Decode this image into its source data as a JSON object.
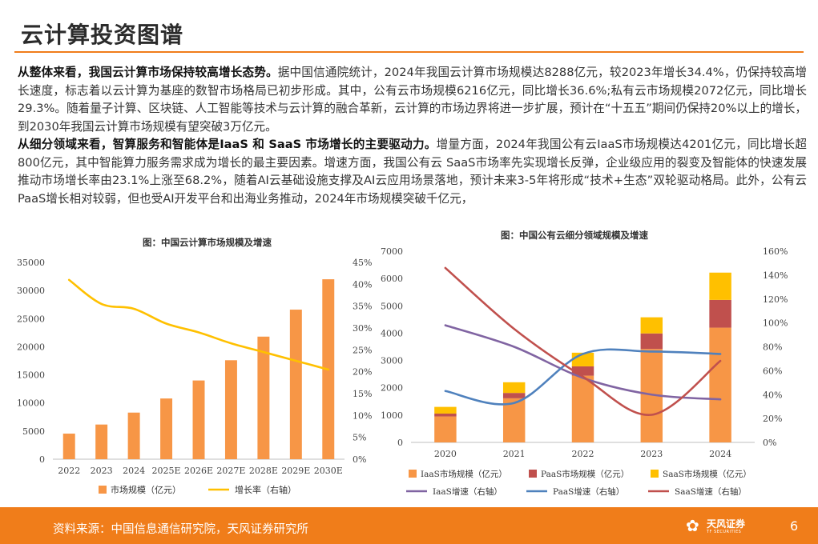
{
  "slide": {
    "title": "云计算投资图谱",
    "page_number": "6"
  },
  "body": {
    "p1_lead": "从整体来看，我国云计算市场保持较高增长态势。",
    "p1_text": "据中国信通院统计，2024年我国云计算市场规模达8288亿元，较2023年增长34.4%，仍保持较高增长速度，标志着以云计算为基座的数智市场格局已初步形成。其中，公有云市场规模6216亿元，同比增长36.6%;私有云市场规模2072亿元，同比增长 29.3%。随着量子计算、区块链、人工智能等技术与云计算的融合革新，云计算的市场边界将进一步扩展，预计在“十五五”期间仍保持20%以上的增长，到2030年我国云计算市场规模有望突破3万亿元。",
    "p2_lead": "从细分领域来看，智算服务和智能体是IaaS 和 SaaS 市场增长的主要驱动力。",
    "p2_text": "增量方面，2024年我国公有云IaaS市场规模达4201亿元，同比增长超800亿元，其中智能算力服务需求成为增长的最主要因素。增速方面，我国公有云 SaaS市场率先实现增长反弹，企业级应用的裂变及智能体的快速发展推动市场增长率由23.1%上涨至68.2%，随着AI云基础设施支撑及AI云应用场景落地，预计未来3-5年将形成“技术+生态”双轮驱动格局。此外，公有云PaaS增长相对较弱，但也受AI开发平台和出海业务推动，2024年市场规模突破千亿元，"
  },
  "footer": {
    "source": "资料来源：中国信息通信研究院，天风证券研究所",
    "logo_text": "天风证券",
    "logo_sub": "TF SECURITIES",
    "logo_glyph": "✿",
    "bar_color": "#f07d1a"
  },
  "chart_data": [
    {
      "type": "bar",
      "title": "图：中国云计算市场规模及增速",
      "categories": [
        "2022",
        "2023",
        "2024",
        "2025E",
        "2026E",
        "2027E",
        "2028E",
        "2029E",
        "2030E"
      ],
      "left_ticks": [
        "0",
        "5000",
        "10000",
        "15000",
        "20000",
        "25000",
        "30000",
        "35000"
      ],
      "right_ticks": [
        "0%",
        "5%",
        "10%",
        "15%",
        "20%",
        "25%",
        "30%",
        "35%",
        "40%",
        "45%"
      ],
      "ylim_left": [
        0,
        35000
      ],
      "ylim_right": [
        0,
        0.45
      ],
      "grid": false,
      "legend_position": "bottom",
      "series": [
        {
          "name": "市场规模（亿元）",
          "kind": "bar",
          "axis": "left",
          "color": "#f79646",
          "values": [
            4550,
            6165,
            8288,
            10800,
            14000,
            17600,
            21800,
            26600,
            32000
          ]
        },
        {
          "name": "增长率（右轴）",
          "kind": "line",
          "axis": "right",
          "color": "#ffc000",
          "values": [
            0.41,
            0.355,
            0.344,
            0.31,
            0.29,
            0.265,
            0.245,
            0.225,
            0.205
          ]
        }
      ]
    },
    {
      "type": "bar",
      "title": "图：中国公有云细分领域规模及增速",
      "categories": [
        "2020",
        "2021",
        "2022",
        "2023",
        "2024"
      ],
      "left_ticks": [
        "0",
        "1000",
        "2000",
        "3000",
        "4000",
        "5000",
        "6000",
        "7000"
      ],
      "right_ticks": [
        "0%",
        "20%",
        "40%",
        "60%",
        "80%",
        "100%",
        "120%",
        "140%",
        "160%"
      ],
      "ylim_left": [
        0,
        7000
      ],
      "ylim_right": [
        0,
        1.6
      ],
      "grid": false,
      "legend_position": "bottom",
      "stacked": true,
      "series": [
        {
          "name": "IaaS市场规模（亿元）",
          "kind": "bar",
          "axis": "left",
          "color": "#f79646",
          "values": [
            950,
            1615,
            2442,
            3420,
            4201
          ]
        },
        {
          "name": "PaaS市场规模（亿元）",
          "kind": "bar",
          "axis": "left",
          "color": "#c0504d",
          "values": [
            105,
            196,
            342,
            570,
            1016
          ]
        },
        {
          "name": "SaaS市场规模（亿元）",
          "kind": "bar",
          "axis": "left",
          "color": "#ffc000",
          "values": [
            245,
            391,
            500,
            590,
            999
          ]
        },
        {
          "name": "IaaS增速（右轴）",
          "kind": "line",
          "axis": "right",
          "color": "#8064a2",
          "values": [
            0.98,
            0.8,
            0.54,
            0.4,
            0.36
          ]
        },
        {
          "name": "PaaS增速（右轴）",
          "kind": "line",
          "axis": "right",
          "color": "#4f81bd",
          "values": [
            0.43,
            0.33,
            0.74,
            0.76,
            0.74
          ]
        },
        {
          "name": "SaaS增速（右轴）",
          "kind": "line",
          "axis": "right",
          "color": "#c0504d",
          "values": [
            1.46,
            0.95,
            0.55,
            0.231,
            0.682
          ]
        }
      ]
    }
  ]
}
